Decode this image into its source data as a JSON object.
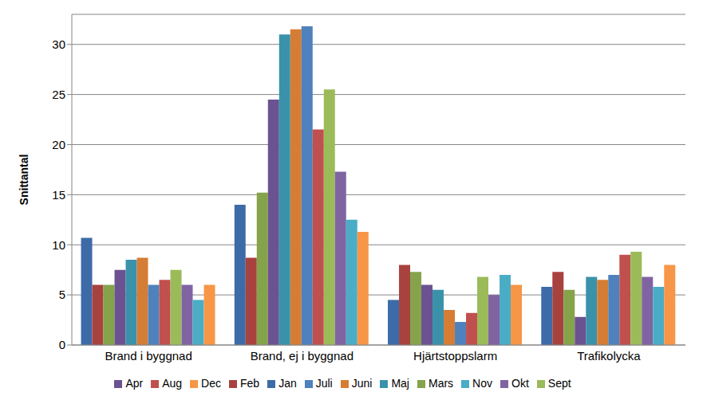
{
  "chart_data": {
    "type": "bar",
    "y_label": "Snittantal",
    "categories": [
      "Brand i byggnad",
      "Brand, ej i byggnad",
      "Hjärtstoppslarm",
      "Trafikolycka"
    ],
    "series": [
      {
        "name": "Jan",
        "color": "#3d6ba8",
        "values": [
          10.7,
          14,
          4.5,
          5.8
        ]
      },
      {
        "name": "Feb",
        "color": "#a8423f",
        "values": [
          6,
          8.7,
          8,
          7.3
        ]
      },
      {
        "name": "Mars",
        "color": "#85a34b",
        "values": [
          6,
          15.2,
          7.3,
          5.5
        ]
      },
      {
        "name": "Apr",
        "color": "#6b5290",
        "values": [
          7.5,
          24.5,
          6,
          2.8
        ]
      },
      {
        "name": "Maj",
        "color": "#3a92aa",
        "values": [
          8.5,
          31,
          5.5,
          6.8
        ]
      },
      {
        "name": "Juni",
        "color": "#d57d35",
        "values": [
          8.7,
          31.5,
          3.5,
          6.5
        ]
      },
      {
        "name": "Juli",
        "color": "#4f81bd",
        "values": [
          6,
          31.8,
          2.3,
          7
        ]
      },
      {
        "name": "Aug",
        "color": "#c0504d",
        "values": [
          6.5,
          21.5,
          3.2,
          9
        ]
      },
      {
        "name": "Sept",
        "color": "#9bbb59",
        "values": [
          7.5,
          25.5,
          6.8,
          9.3
        ]
      },
      {
        "name": "Okt",
        "color": "#8064a2",
        "values": [
          6,
          17.3,
          5,
          6.8
        ]
      },
      {
        "name": "Nov",
        "color": "#4bacc6",
        "values": [
          4.5,
          12.5,
          7,
          5.8
        ]
      },
      {
        "name": "Dec",
        "color": "#f79646",
        "values": [
          6,
          11.3,
          6,
          8
        ]
      }
    ],
    "ylim": [
      0,
      33
    ],
    "yticks": [
      0,
      5,
      10,
      15,
      20,
      25,
      30
    ],
    "grid": true,
    "legend": "bottom"
  }
}
